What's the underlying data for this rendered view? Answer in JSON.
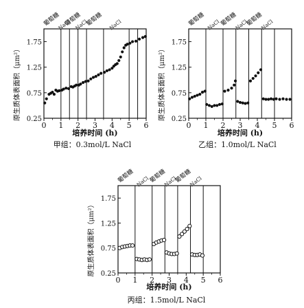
{
  "chart_data": [
    {
      "type": "scatter",
      "caption": "甲组：0.3mol/L NaCl",
      "xlabel": "培养时间 (h)",
      "ylabel": "原生质体表面积（μm²）",
      "xlim": [
        0,
        6
      ],
      "ylim": [
        0.25,
        2.0
      ],
      "xticks": [
        "0",
        "1",
        "2",
        "3",
        "4",
        "5",
        "6"
      ],
      "yticks": [
        "0.25",
        "0.75",
        "1.25",
        "1.75"
      ],
      "marker": "filled",
      "phase_labels": [
        "葡萄糖",
        "NaCl",
        "葡萄糖",
        "NaCl",
        "葡萄糖",
        "NaCl"
      ],
      "phase_boundaries": [
        1,
        1.5,
        2,
        2.5,
        3.5,
        5,
        5.5
      ],
      "points": [
        {
          "x": 0.05,
          "y": 0.55
        },
        {
          "x": 0.15,
          "y": 0.63
        },
        {
          "x": 0.3,
          "y": 0.72
        },
        {
          "x": 0.4,
          "y": 0.74
        },
        {
          "x": 0.5,
          "y": 0.76
        },
        {
          "x": 0.6,
          "y": 0.72
        },
        {
          "x": 0.7,
          "y": 0.8
        },
        {
          "x": 0.8,
          "y": 0.78
        },
        {
          "x": 0.9,
          "y": 0.79
        },
        {
          "x": 1.05,
          "y": 0.8
        },
        {
          "x": 1.15,
          "y": 0.82
        },
        {
          "x": 1.3,
          "y": 0.84
        },
        {
          "x": 1.45,
          "y": 0.83
        },
        {
          "x": 1.6,
          "y": 0.87
        },
        {
          "x": 1.7,
          "y": 0.86
        },
        {
          "x": 1.8,
          "y": 0.88
        },
        {
          "x": 1.9,
          "y": 0.9
        },
        {
          "x": 2.05,
          "y": 0.9
        },
        {
          "x": 2.15,
          "y": 0.92
        },
        {
          "x": 2.3,
          "y": 0.95
        },
        {
          "x": 2.45,
          "y": 0.97
        },
        {
          "x": 2.6,
          "y": 0.98
        },
        {
          "x": 2.75,
          "y": 1.02
        },
        {
          "x": 2.9,
          "y": 1.05
        },
        {
          "x": 3.05,
          "y": 1.07
        },
        {
          "x": 3.2,
          "y": 1.1
        },
        {
          "x": 3.35,
          "y": 1.13
        },
        {
          "x": 3.55,
          "y": 1.15
        },
        {
          "x": 3.7,
          "y": 1.18
        },
        {
          "x": 3.85,
          "y": 1.2
        },
        {
          "x": 4.0,
          "y": 1.23
        },
        {
          "x": 4.1,
          "y": 1.27
        },
        {
          "x": 4.2,
          "y": 1.3
        },
        {
          "x": 4.3,
          "y": 1.32
        },
        {
          "x": 4.4,
          "y": 1.38
        },
        {
          "x": 4.5,
          "y": 1.45
        },
        {
          "x": 4.6,
          "y": 1.55
        },
        {
          "x": 4.7,
          "y": 1.63
        },
        {
          "x": 4.8,
          "y": 1.68
        },
        {
          "x": 4.9,
          "y": 1.7
        },
        {
          "x": 5.05,
          "y": 1.72
        },
        {
          "x": 5.2,
          "y": 1.75
        },
        {
          "x": 5.4,
          "y": 1.76
        },
        {
          "x": 5.6,
          "y": 1.8
        },
        {
          "x": 5.8,
          "y": 1.83
        },
        {
          "x": 5.95,
          "y": 1.85
        }
      ]
    },
    {
      "type": "scatter",
      "caption": "乙组：1.0mol/L NaCl",
      "xlabel": "培养时间 (h)",
      "ylabel": "原生质体表面积（μm²）",
      "xlim": [
        0,
        6
      ],
      "ylim": [
        0.25,
        2.0
      ],
      "xticks": [
        "0",
        "1",
        "2",
        "3",
        "4",
        "5",
        "6"
      ],
      "yticks": [
        "0.25",
        "0.75",
        "1.25",
        "1.75"
      ],
      "marker": "filled",
      "phase_labels": [
        "葡萄糖",
        "NaCl",
        "葡萄糖",
        "NaCl",
        "葡萄糖",
        "NaCl"
      ],
      "phase_boundaries": [
        1,
        2,
        2.75,
        3.5,
        4.25,
        5
      ],
      "points": [
        {
          "x": 0.05,
          "y": 0.63
        },
        {
          "x": 0.2,
          "y": 0.66
        },
        {
          "x": 0.35,
          "y": 0.68
        },
        {
          "x": 0.5,
          "y": 0.7
        },
        {
          "x": 0.65,
          "y": 0.72
        },
        {
          "x": 0.8,
          "y": 0.76
        },
        {
          "x": 0.95,
          "y": 0.78
        },
        {
          "x": 1.05,
          "y": 0.52
        },
        {
          "x": 1.2,
          "y": 0.5
        },
        {
          "x": 1.35,
          "y": 0.48
        },
        {
          "x": 1.5,
          "y": 0.5
        },
        {
          "x": 1.65,
          "y": 0.5
        },
        {
          "x": 1.8,
          "y": 0.52
        },
        {
          "x": 1.95,
          "y": 0.53
        },
        {
          "x": 2.1,
          "y": 0.78
        },
        {
          "x": 2.3,
          "y": 0.8
        },
        {
          "x": 2.5,
          "y": 0.84
        },
        {
          "x": 2.65,
          "y": 0.9
        },
        {
          "x": 2.72,
          "y": 0.98
        },
        {
          "x": 2.85,
          "y": 0.58
        },
        {
          "x": 3.0,
          "y": 0.56
        },
        {
          "x": 3.15,
          "y": 0.55
        },
        {
          "x": 3.3,
          "y": 0.54
        },
        {
          "x": 3.45,
          "y": 0.55
        },
        {
          "x": 3.6,
          "y": 0.98
        },
        {
          "x": 3.75,
          "y": 1.03
        },
        {
          "x": 3.9,
          "y": 1.08
        },
        {
          "x": 4.05,
          "y": 1.14
        },
        {
          "x": 4.2,
          "y": 1.2
        },
        {
          "x": 4.35,
          "y": 0.63
        },
        {
          "x": 4.5,
          "y": 0.62
        },
        {
          "x": 4.65,
          "y": 0.62
        },
        {
          "x": 4.8,
          "y": 0.63
        },
        {
          "x": 4.95,
          "y": 0.62
        },
        {
          "x": 5.1,
          "y": 0.63
        },
        {
          "x": 5.3,
          "y": 0.62
        },
        {
          "x": 5.5,
          "y": 0.63
        },
        {
          "x": 5.7,
          "y": 0.62
        },
        {
          "x": 5.9,
          "y": 0.62
        }
      ]
    },
    {
      "type": "scatter",
      "caption": "丙组：1.5mol/L NaCl",
      "xlabel": "培养时间 (h)",
      "ylabel": "原生质体表面积（μm²）",
      "xlim": [
        0,
        6
      ],
      "ylim": [
        0.25,
        2.0
      ],
      "xticks": [
        "0",
        "1",
        "2",
        "3",
        "4",
        "5",
        "6"
      ],
      "yticks": [
        "0.25",
        "0.75",
        "1.25",
        "1.75"
      ],
      "marker": "open",
      "phase_labels": [
        "葡萄糖",
        "NaCl",
        "葡萄糖",
        "NaCl",
        "葡萄糖",
        "NaCl"
      ],
      "phase_boundaries": [
        1,
        2,
        2.75,
        3.5,
        4.25,
        5
      ],
      "points": [
        {
          "x": 0.1,
          "y": 0.75
        },
        {
          "x": 0.25,
          "y": 0.77
        },
        {
          "x": 0.4,
          "y": 0.78
        },
        {
          "x": 0.55,
          "y": 0.79
        },
        {
          "x": 0.7,
          "y": 0.8
        },
        {
          "x": 0.85,
          "y": 0.8
        },
        {
          "x": 1.1,
          "y": 0.53
        },
        {
          "x": 1.25,
          "y": 0.52
        },
        {
          "x": 1.4,
          "y": 0.51
        },
        {
          "x": 1.55,
          "y": 0.52
        },
        {
          "x": 1.7,
          "y": 0.51
        },
        {
          "x": 1.85,
          "y": 0.52
        },
        {
          "x": 2.1,
          "y": 0.83
        },
        {
          "x": 2.25,
          "y": 0.86
        },
        {
          "x": 2.4,
          "y": 0.88
        },
        {
          "x": 2.55,
          "y": 0.9
        },
        {
          "x": 2.7,
          "y": 0.91
        },
        {
          "x": 2.85,
          "y": 0.66
        },
        {
          "x": 3.0,
          "y": 0.64
        },
        {
          "x": 3.15,
          "y": 0.63
        },
        {
          "x": 3.3,
          "y": 0.63
        },
        {
          "x": 3.45,
          "y": 0.64
        },
        {
          "x": 3.6,
          "y": 0.98
        },
        {
          "x": 3.75,
          "y": 1.03
        },
        {
          "x": 3.9,
          "y": 1.08
        },
        {
          "x": 4.05,
          "y": 1.13
        },
        {
          "x": 4.2,
          "y": 1.19
        },
        {
          "x": 4.35,
          "y": 0.62
        },
        {
          "x": 4.5,
          "y": 0.61
        },
        {
          "x": 4.65,
          "y": 0.61
        },
        {
          "x": 4.8,
          "y": 0.62
        },
        {
          "x": 4.95,
          "y": 0.6
        }
      ]
    }
  ]
}
